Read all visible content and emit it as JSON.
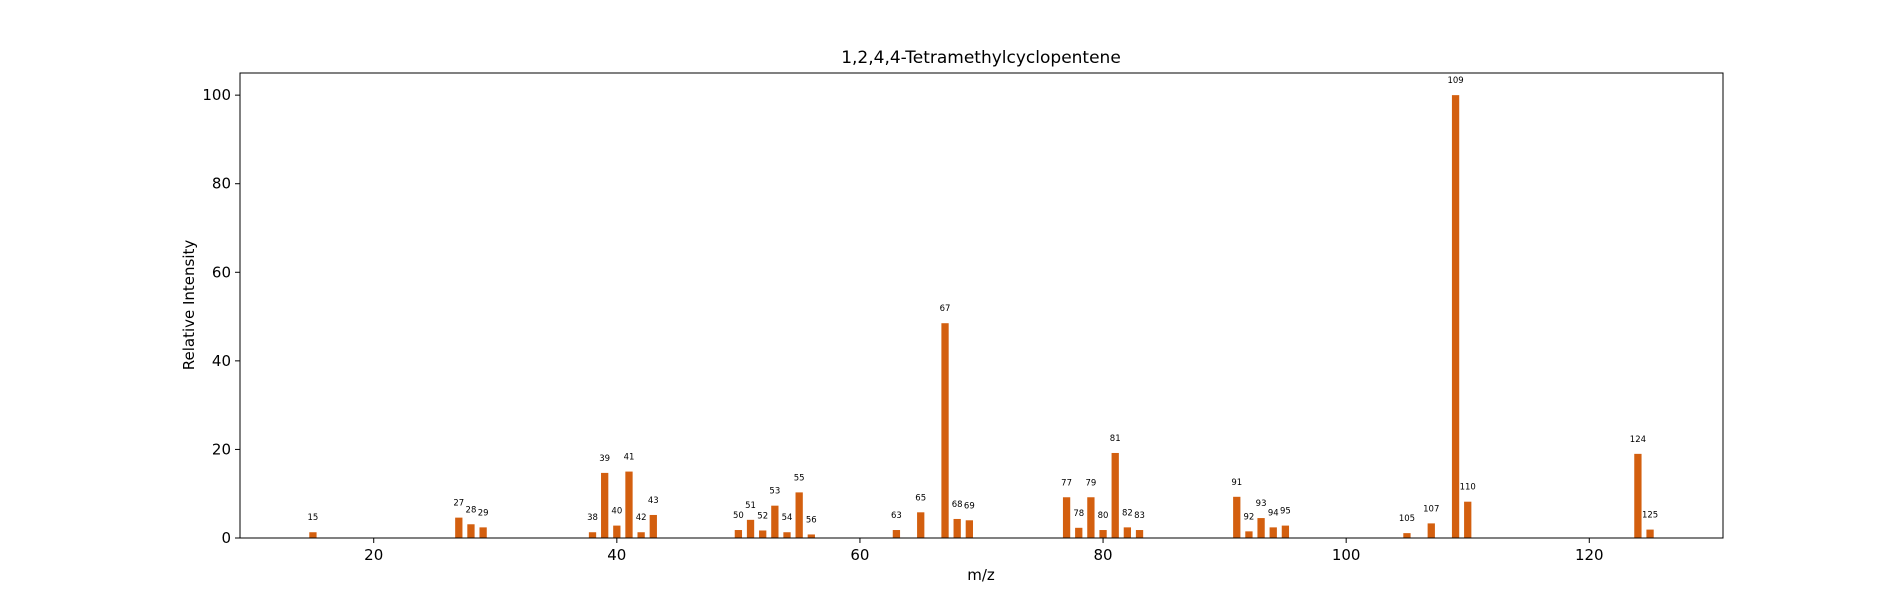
{
  "chart_data": {
    "type": "bar",
    "title": "1,2,4,4-Tetramethylcyclopentene",
    "xlabel": "m/z",
    "ylabel": "Relative Intensity",
    "xlim": [
      9,
      131
    ],
    "ylim": [
      0,
      105
    ],
    "xticks": [
      20,
      40,
      60,
      80,
      100,
      120
    ],
    "yticks": [
      0,
      20,
      40,
      60,
      80,
      100
    ],
    "grid": false,
    "bar_color": "#d35f0f",
    "x": [
      15,
      27,
      28,
      29,
      38,
      39,
      40,
      41,
      42,
      43,
      50,
      51,
      52,
      53,
      54,
      55,
      56,
      63,
      65,
      67,
      68,
      69,
      77,
      78,
      79,
      80,
      81,
      82,
      83,
      91,
      92,
      93,
      94,
      95,
      105,
      107,
      109,
      110,
      124,
      125
    ],
    "values": [
      1.3,
      4.6,
      3.1,
      2.4,
      1.3,
      14.7,
      2.8,
      15.0,
      1.3,
      5.2,
      1.8,
      4.1,
      1.7,
      7.3,
      1.3,
      10.3,
      0.8,
      1.8,
      5.8,
      48.5,
      4.3,
      4.0,
      9.2,
      2.3,
      9.2,
      1.8,
      19.2,
      2.4,
      1.8,
      9.3,
      1.5,
      4.5,
      2.4,
      2.8,
      1.1,
      3.3,
      100.0,
      8.2,
      19.0,
      1.9
    ],
    "labels": [
      "15",
      "27",
      "28",
      "29",
      "38",
      "39",
      "40",
      "41",
      "42",
      "43",
      "50",
      "51",
      "52",
      "53",
      "54",
      "55",
      "56",
      "63",
      "65",
      "67",
      "68",
      "69",
      "77",
      "78",
      "79",
      "80",
      "81",
      "82",
      "83",
      "91",
      "92",
      "93",
      "94",
      "95",
      "105",
      "107",
      "109",
      "110",
      "124",
      "125"
    ]
  }
}
